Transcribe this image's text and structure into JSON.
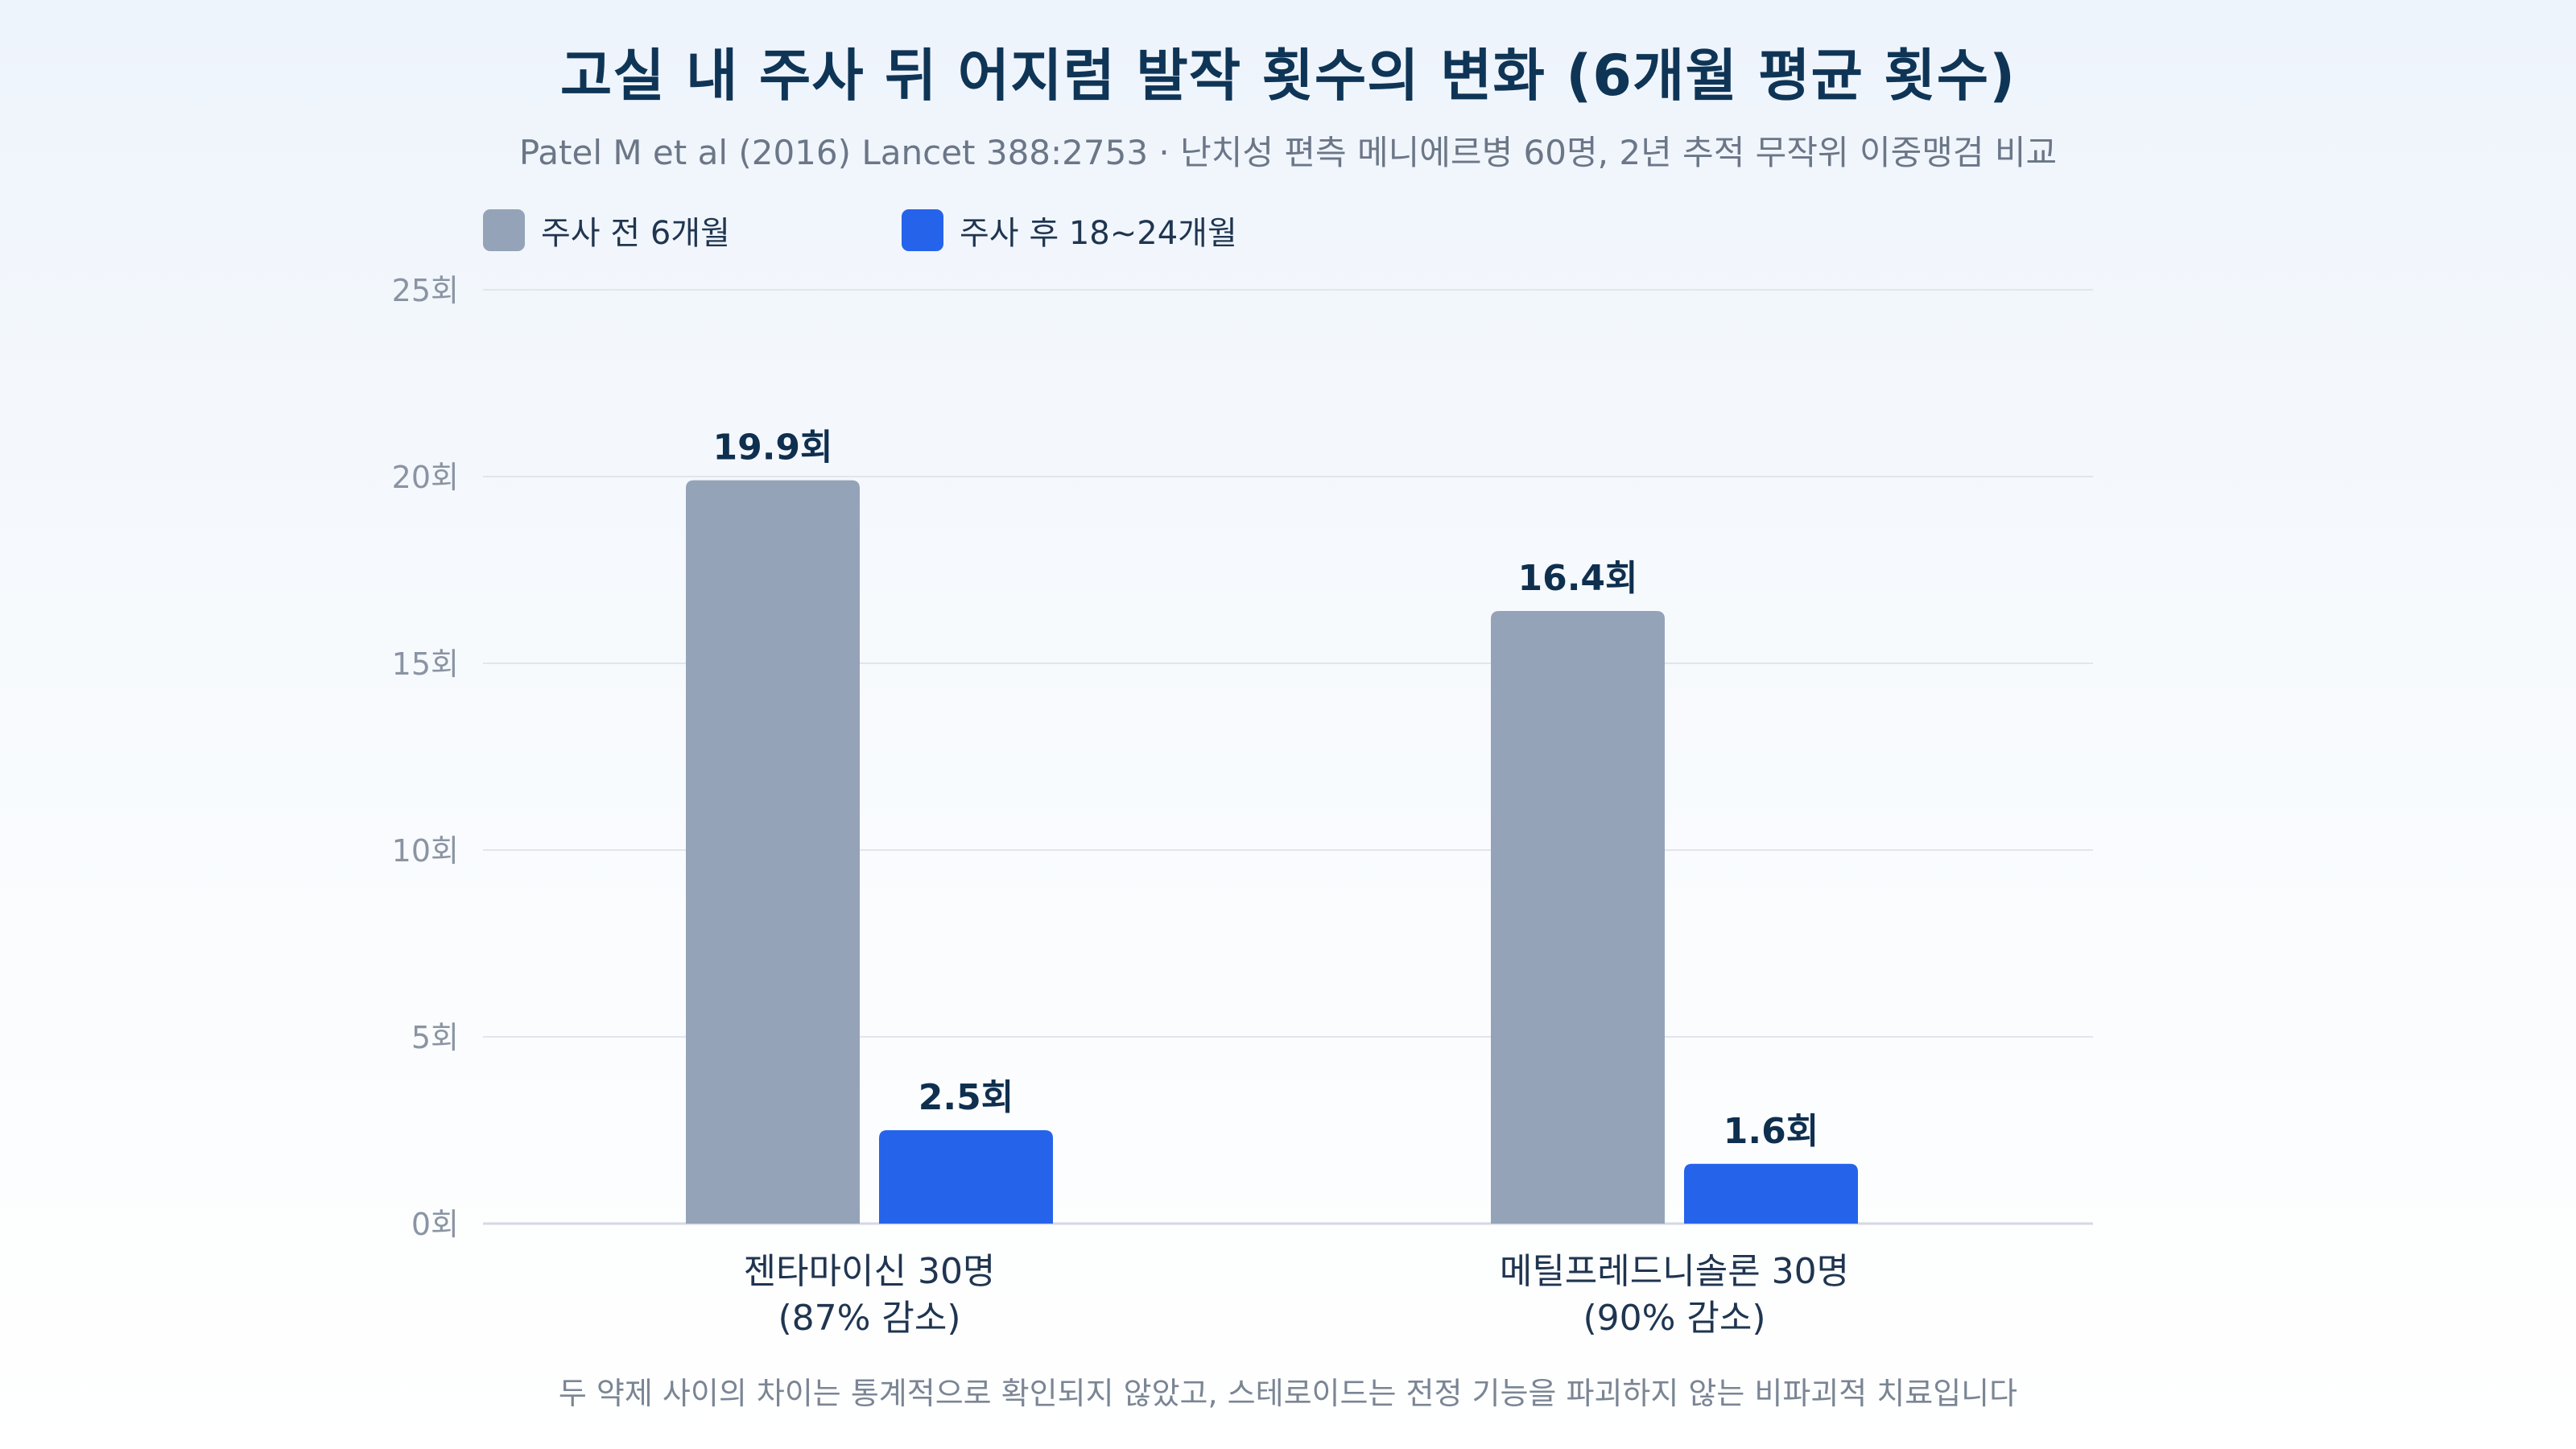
{
  "chart_data": {
    "type": "bar",
    "title": "고실 내 주사 뒤 어지럼 발작 횟수의 변화 (6개월 평균 횟수)",
    "subtitle": "Patel M et al (2016) Lancet 388:2753 · 난치성 편측 메니에르병 60명, 2년 추적 무작위 이중맹검 비교",
    "categories": [
      {
        "line1": "젠타마이신 30명",
        "line2": "(87% 감소)"
      },
      {
        "line1": "메틸프레드니솔론 30명",
        "line2": "(90% 감소)"
      }
    ],
    "series": [
      {
        "name": "주사 전 6개월",
        "color": "#94a3b8",
        "values": [
          19.9,
          16.4
        ],
        "labels": [
          "19.9회",
          "16.4회"
        ]
      },
      {
        "name": "주사 후 18~24개월",
        "color": "#2563eb",
        "values": [
          2.5,
          1.6
        ],
        "labels": [
          "2.5회",
          "1.6회"
        ]
      }
    ],
    "yticks": [
      0,
      5,
      10,
      15,
      20,
      25
    ],
    "ytick_labels": [
      "0회",
      "5회",
      "10회",
      "15회",
      "20회",
      "25회"
    ],
    "ylim": [
      0,
      25
    ],
    "grid": true,
    "legend_position": "top-left",
    "footnote": "두 약제 사이의 차이는 통계적으로 확인되지 않았고, 스테로이드는 전정 기능을 파괴하지 않는 비파괴적 치료입니다"
  }
}
